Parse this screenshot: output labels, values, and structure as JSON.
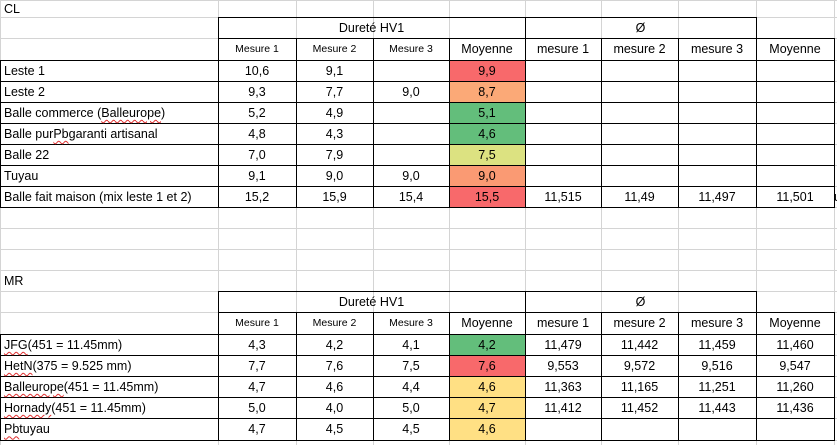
{
  "sections": [
    {
      "label": "CL",
      "groups": {
        "hardness": "Dureté HV1",
        "diameter": "Ø"
      },
      "headers": [
        "Mesure 1",
        "Mesure 2",
        "Mesure 3",
        "Moyenne",
        "mesure 1",
        "mesure 2",
        "mesure 3",
        "Moyenne"
      ],
      "rows": [
        {
          "name": "Leste 1",
          "m1": "10,6",
          "m2": "9,1",
          "m3": "",
          "avg": "9,9",
          "d1": "",
          "d2": "",
          "d3": "",
          "davg": "",
          "color": "#f8696b"
        },
        {
          "name": "Leste 2",
          "m1": "9,3",
          "m2": "7,7",
          "m3": "9,0",
          "avg": "8,7",
          "d1": "",
          "d2": "",
          "d3": "",
          "davg": "",
          "color": "#fba977"
        },
        {
          "name": "Balle commerce (Balleurope)",
          "m1": "5,2",
          "m2": "4,9",
          "m3": "",
          "avg": "5,1",
          "d1": "",
          "d2": "",
          "d3": "",
          "davg": "",
          "color": "#63be7b"
        },
        {
          "name": "Balle pur Pb garanti artisanal",
          "m1": "4,8",
          "m2": "4,3",
          "m3": "",
          "avg": "4,6",
          "d1": "",
          "d2": "",
          "d3": "",
          "davg": "",
          "color": "#63be7b"
        },
        {
          "name": "Balle 22",
          "m1": "7,0",
          "m2": "7,9",
          "m3": "",
          "avg": "7,5",
          "d1": "",
          "d2": "",
          "d3": "",
          "davg": "",
          "color": "#dce281"
        },
        {
          "name": "Tuyau",
          "m1": "9,1",
          "m2": "9,0",
          "m3": "9,0",
          "avg": "9,0",
          "d1": "",
          "d2": "",
          "d3": "",
          "davg": "",
          "color": "#fa9a73"
        },
        {
          "name": "Balle fait maison (mix leste 1 et 2)",
          "m1": "15,2",
          "m2": "15,9",
          "m3": "15,4",
          "avg": "15,5",
          "d1": "11,515",
          "d2": "11,49",
          "d3": "11,497",
          "davg": "11,501",
          "color": "#f8696b"
        }
      ]
    },
    {
      "label": "MR",
      "groups": {
        "hardness": "Dureté HV1",
        "diameter": "Ø"
      },
      "headers": [
        "Mesure 1",
        "Mesure 2",
        "Mesure 3",
        "Moyenne",
        "mesure 1",
        "mesure 2",
        "mesure 3",
        "Moyenne"
      ],
      "rows": [
        {
          "name": "JFG (451 = 11.45mm)",
          "m1": "4,3",
          "m2": "4,2",
          "m3": "4,1",
          "avg": "4,2",
          "d1": "11,479",
          "d2": "11,442",
          "d3": "11,459",
          "davg": "11,460",
          "color": "#63be7b"
        },
        {
          "name": "HetN (375 = 9.525 mm)",
          "m1": "7,7",
          "m2": "7,6",
          "m3": "7,5",
          "avg": "7,6",
          "d1": "9,553",
          "d2": "9,572",
          "d3": "9,516",
          "davg": "9,547",
          "color": "#f8696b"
        },
        {
          "name": "Balleurope (451 = 11.45mm)",
          "m1": "4,7",
          "m2": "4,6",
          "m3": "4,4",
          "avg": "4,6",
          "d1": "11,363",
          "d2": "11,165",
          "d3": "11,251",
          "davg": "11,260",
          "color": "#ffe084"
        },
        {
          "name": "Hornady (451 = 11.45mm)",
          "m1": "5,0",
          "m2": "4,0",
          "m3": "5,0",
          "avg": "4,7",
          "d1": "11,412",
          "d2": "11,452",
          "d3": "11,443",
          "davg": "11,436",
          "color": "#ffe084"
        },
        {
          "name": "Pb tuyau",
          "m1": "4,7",
          "m2": "4,5",
          "m3": "4,5",
          "avg": "4,6",
          "d1": "",
          "d2": "",
          "d3": "",
          "davg": "",
          "color": "#ffe084"
        }
      ]
    }
  ],
  "overflow_char": "u"
}
